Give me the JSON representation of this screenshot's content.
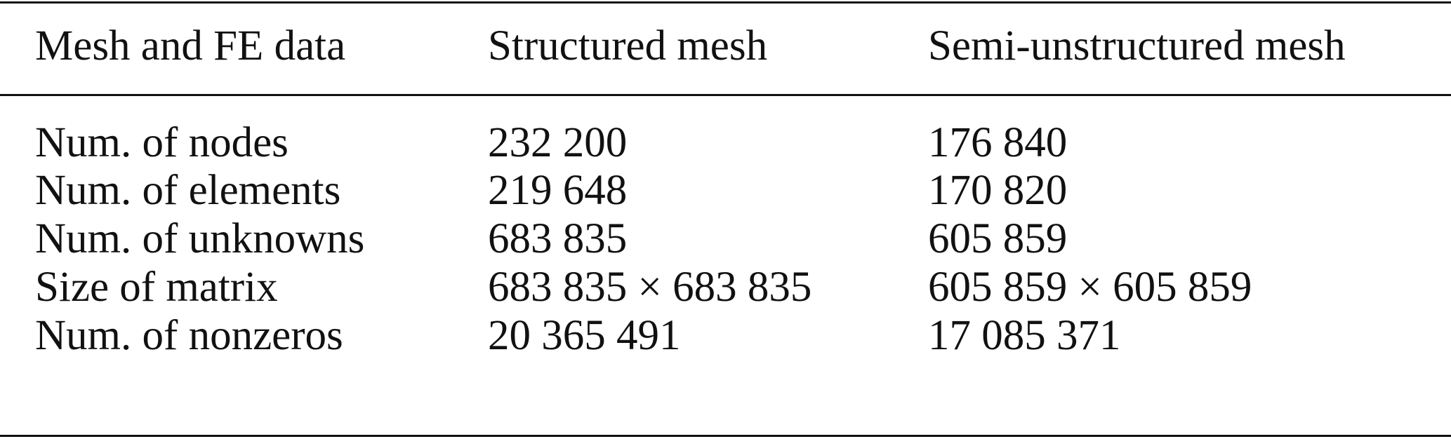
{
  "table": {
    "headers": [
      "Mesh and FE data",
      "Structured mesh",
      "Semi-unstructured mesh"
    ],
    "rows": [
      [
        "Num. of nodes",
        "232 200",
        "176 840"
      ],
      [
        "Num. of elements",
        "219 648",
        "170 820"
      ],
      [
        "Num. of unknowns",
        "683 835",
        "605 859"
      ],
      [
        "Size of matrix",
        "683 835 × 683 835",
        "605 859 × 605 859"
      ],
      [
        "Num. of nonzeros",
        "20 365 491",
        "17 085 371"
      ]
    ]
  }
}
